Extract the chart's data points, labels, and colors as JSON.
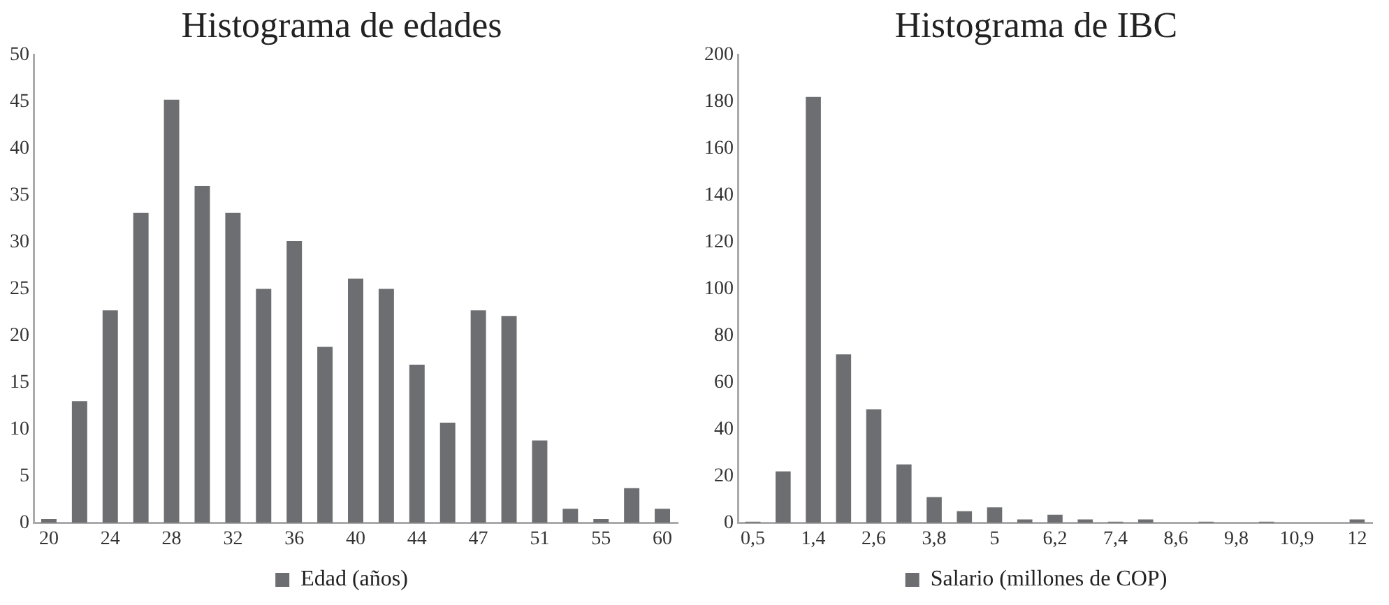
{
  "chart_data": [
    {
      "type": "bar",
      "title": "Histograma de edades",
      "categories": [
        "20",
        null,
        "24",
        null,
        "28",
        null,
        "32",
        null,
        "36",
        null,
        "40",
        null,
        "44",
        null,
        "47",
        null,
        "51",
        null,
        "55",
        null,
        "60"
      ],
      "series": [
        {
          "name": "Edad (años)",
          "color": "#6d6e71",
          "values": [
            0.4,
            13,
            22.7,
            33.1,
            45.2,
            36,
            33.1,
            25,
            30.1,
            18.8,
            26.1,
            25,
            16.9,
            10.7,
            22.7,
            22.1,
            8.8,
            1.5,
            0.4,
            3.7,
            1.5
          ]
        }
      ],
      "ylim": [
        0,
        50
      ],
      "yticks": [
        0,
        5,
        10,
        15,
        20,
        25,
        30,
        35,
        40,
        45,
        50
      ],
      "grid": false,
      "legend": "bottom"
    },
    {
      "type": "bar",
      "title": "Histograma de IBC",
      "categories": [
        "0,5",
        null,
        "1,4",
        null,
        "2,6",
        null,
        "3,8",
        null,
        "5",
        null,
        "6,2",
        null,
        "7,4",
        null,
        "8,6",
        null,
        "9,8",
        null,
        "10,9",
        null,
        "12"
      ],
      "series": [
        {
          "name": "Salario (millones de COP)",
          "color": "#6d6e71",
          "values": [
            0.5,
            22,
            182,
            72,
            48.5,
            25,
            11,
            5,
            6.6,
            1.5,
            3.5,
            1.5,
            0.5,
            1.5,
            0,
            0.5,
            0,
            0.5,
            0,
            0,
            1.5
          ]
        }
      ],
      "ylim": [
        0,
        200
      ],
      "yticks": [
        0,
        20,
        40,
        60,
        80,
        100,
        120,
        140,
        160,
        180,
        200
      ],
      "grid": false,
      "legend": "bottom"
    }
  ]
}
